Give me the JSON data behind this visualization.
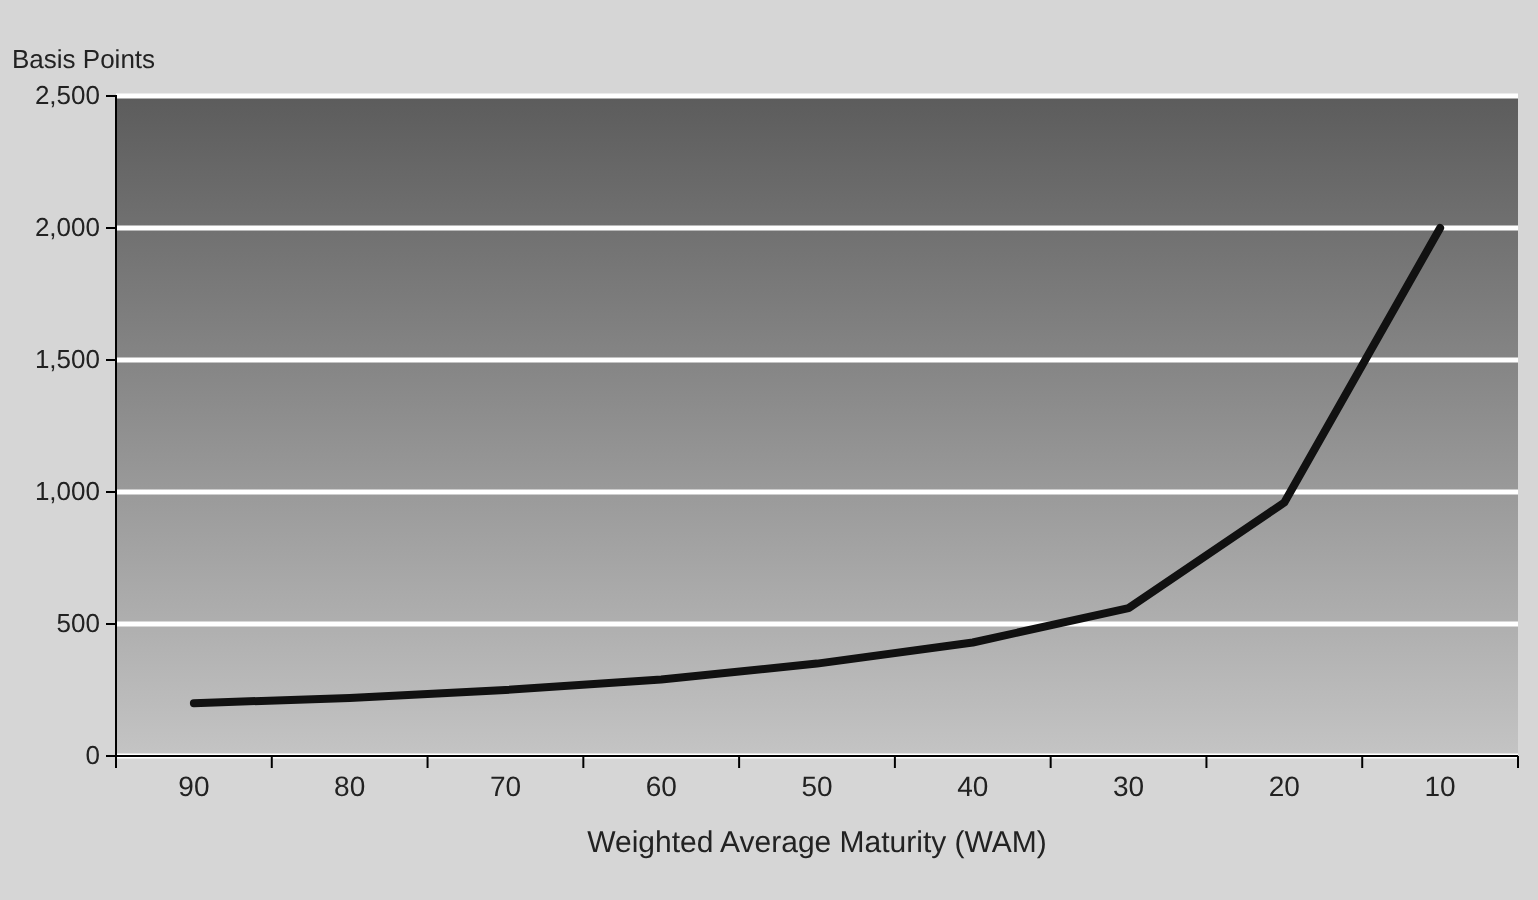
{
  "chart_data": {
    "type": "line",
    "ylabel": "Basis Points",
    "xlabel": "Weighted Average Maturity (WAM)",
    "categories": [
      "90",
      "80",
      "70",
      "60",
      "50",
      "40",
      "30",
      "20",
      "10"
    ],
    "series": [
      {
        "color": "#111111",
        "values": [
          200,
          220,
          250,
          290,
          350,
          430,
          560,
          960,
          2000
        ]
      }
    ],
    "ylim": [
      0,
      2500
    ],
    "yticks": [
      {
        "value": 0,
        "label": "0"
      },
      {
        "value": 500,
        "label": "500"
      },
      {
        "value": 1000,
        "label": "1,000"
      },
      {
        "value": 1500,
        "label": "1,500"
      },
      {
        "value": 2000,
        "label": "2,000"
      },
      {
        "value": 2500,
        "label": "2,500"
      }
    ],
    "grid": "y",
    "marker": "none",
    "line_style": "solid"
  }
}
